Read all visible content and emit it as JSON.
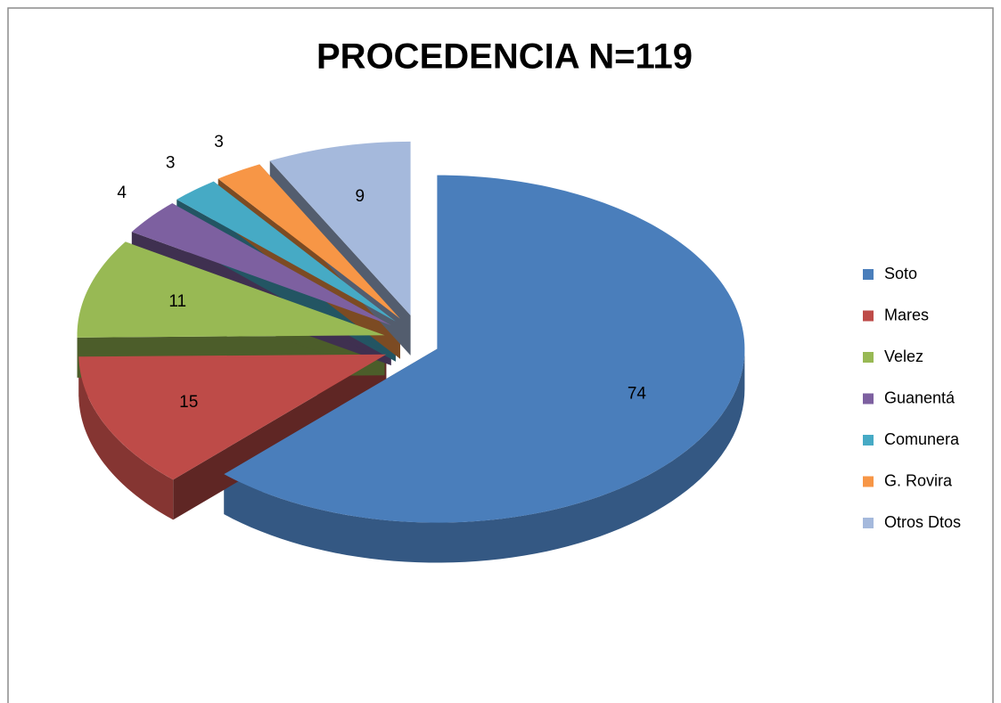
{
  "chart_data": {
    "type": "pie",
    "title": "PROCEDENCIA N=119",
    "categories": [
      "Soto",
      "Mares",
      "Velez",
      "Guanentá",
      "Comunera",
      "G. Rovira",
      "Otros Dtos"
    ],
    "values": [
      74,
      15,
      11,
      4,
      3,
      3,
      9
    ],
    "colors": [
      "#4a7ebb",
      "#be4b48",
      "#98b954",
      "#7d60a0",
      "#46aac5",
      "#f79646",
      "#a5b9dc"
    ],
    "legend": "right"
  }
}
